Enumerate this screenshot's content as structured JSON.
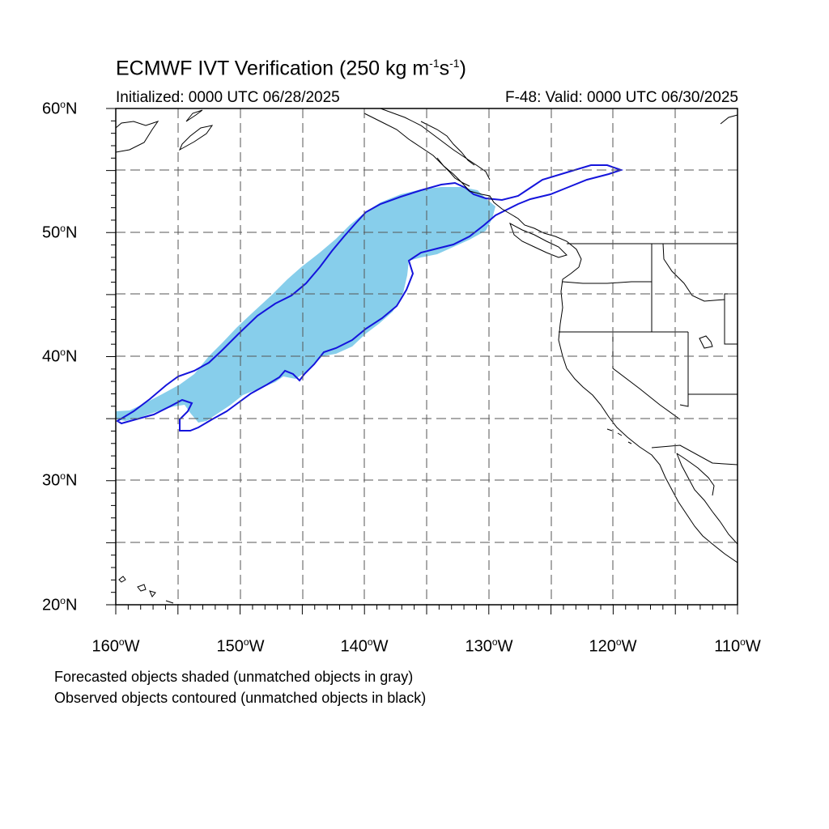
{
  "header": {
    "title_main": "ECMWF IVT Verification (250 kg m",
    "title_sup1": "-1",
    "title_mid": "s",
    "title_sup2": "-1",
    "title_end": ")",
    "initialized": "Initialized: 0000 UTC 06/28/2025",
    "valid": "F-48: Valid: 0000 UTC 06/30/2025"
  },
  "axes": {
    "lat_labels": [
      {
        "num": "60",
        "deg": "o",
        "hem": "N"
      },
      {
        "num": "50",
        "deg": "o",
        "hem": "N"
      },
      {
        "num": "40",
        "deg": "o",
        "hem": "N"
      },
      {
        "num": "30",
        "deg": "o",
        "hem": "N"
      },
      {
        "num": "20",
        "deg": "o",
        "hem": "N"
      }
    ],
    "lon_labels": [
      {
        "num": "160",
        "deg": "o",
        "hem": "W"
      },
      {
        "num": "150",
        "deg": "o",
        "hem": "W"
      },
      {
        "num": "140",
        "deg": "o",
        "hem": "W"
      },
      {
        "num": "130",
        "deg": "o",
        "hem": "W"
      },
      {
        "num": "120",
        "deg": "o",
        "hem": "W"
      },
      {
        "num": "110",
        "deg": "o",
        "hem": "W"
      }
    ],
    "lat_range": [
      20,
      60
    ],
    "lon_range": [
      -160,
      -110
    ],
    "gridline_spacing_deg": 5
  },
  "notes": {
    "forecast": "Forecasted objects shaded (unmatched objects in gray)",
    "observed": "Observed objects contoured (unmatched objects in black)"
  },
  "colors": {
    "forecast_fill": "#87ceeb",
    "observed_contour": "#1414dc",
    "coastline": "#000000",
    "grid": "#555555"
  },
  "map_objects": {
    "forecast_object": "shaded atmospheric river",
    "observed_object": "contoured atmospheric river"
  }
}
